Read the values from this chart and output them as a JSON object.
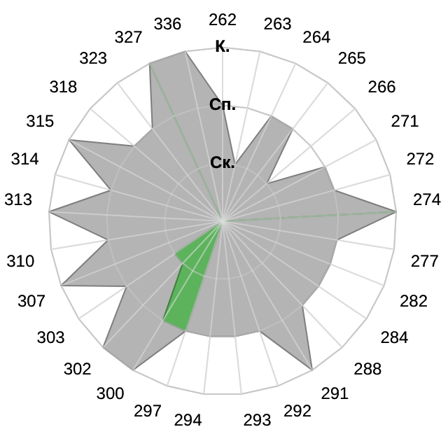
{
  "chart_data": {
    "type": "radar",
    "categories": [
      "262",
      "263",
      "264",
      "265",
      "266",
      "271",
      "272",
      "274",
      "277",
      "282",
      "284",
      "288",
      "291",
      "292",
      "293",
      "294",
      "297",
      "300",
      "302",
      "303",
      "307",
      "310",
      "313",
      "314",
      "315",
      "318",
      "323",
      "327",
      "336"
    ],
    "series": [
      {
        "color": "#b4b4b4",
        "values": [
          2,
          1,
          2,
          2,
          1,
          2,
          2,
          3,
          2,
          2,
          2,
          2,
          3,
          2,
          2,
          2,
          2,
          3,
          3,
          2,
          3,
          2,
          3,
          2,
          3,
          2,
          2,
          3,
          3
        ]
      },
      {
        "color": "#5cb35c",
        "values": [
          0,
          0,
          0,
          0,
          0,
          0,
          0,
          3,
          0,
          0,
          0,
          0,
          0,
          0,
          0,
          0,
          2,
          2,
          1,
          1,
          0,
          0,
          0,
          0,
          0,
          0,
          0,
          3,
          0
        ]
      }
    ],
    "ylim": [
      0,
      3
    ],
    "yticks": [
      {
        "value": 1,
        "label": "Ск."
      },
      {
        "value": 2,
        "label": "Сп."
      },
      {
        "value": 3,
        "label": "К."
      }
    ],
    "grid": true,
    "legend": false,
    "marker": "none"
  }
}
